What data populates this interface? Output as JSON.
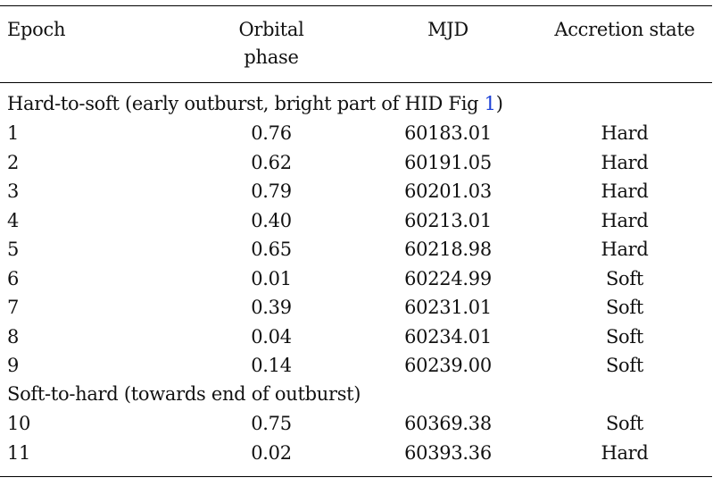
{
  "table": {
    "headers": {
      "epoch": "Epoch",
      "orbital_phase_line1": "Orbital",
      "orbital_phase_line2": "phase",
      "mjd": "MJD",
      "accretion_state": "Accretion state"
    },
    "section1": {
      "label_prefix": "Hard-to-soft (early outburst, bright part of HID Fig ",
      "label_ref": "1",
      "label_suffix": ")",
      "rows": [
        {
          "epoch": "1",
          "phase": "0.76",
          "mjd": "60183.01",
          "state": "Hard"
        },
        {
          "epoch": "2",
          "phase": "0.62",
          "mjd": "60191.05",
          "state": "Hard"
        },
        {
          "epoch": "3",
          "phase": "0.79",
          "mjd": "60201.03",
          "state": "Hard"
        },
        {
          "epoch": "4",
          "phase": "0.40",
          "mjd": "60213.01",
          "state": "Hard"
        },
        {
          "epoch": "5",
          "phase": "0.65",
          "mjd": "60218.98",
          "state": "Hard"
        },
        {
          "epoch": "6",
          "phase": "0.01",
          "mjd": "60224.99",
          "state": "Soft"
        },
        {
          "epoch": "7",
          "phase": "0.39",
          "mjd": "60231.01",
          "state": "Soft"
        },
        {
          "epoch": "8",
          "phase": "0.04",
          "mjd": "60234.01",
          "state": "Soft"
        },
        {
          "epoch": "9",
          "phase": "0.14",
          "mjd": "60239.00",
          "state": "Soft"
        }
      ]
    },
    "section2": {
      "label": "Soft-to-hard (towards end of outburst)",
      "rows": [
        {
          "epoch": "10",
          "phase": "0.75",
          "mjd": "60369.38",
          "state": "Soft"
        },
        {
          "epoch": "11",
          "phase": "0.02",
          "mjd": "60393.36",
          "state": "Hard"
        }
      ]
    }
  }
}
